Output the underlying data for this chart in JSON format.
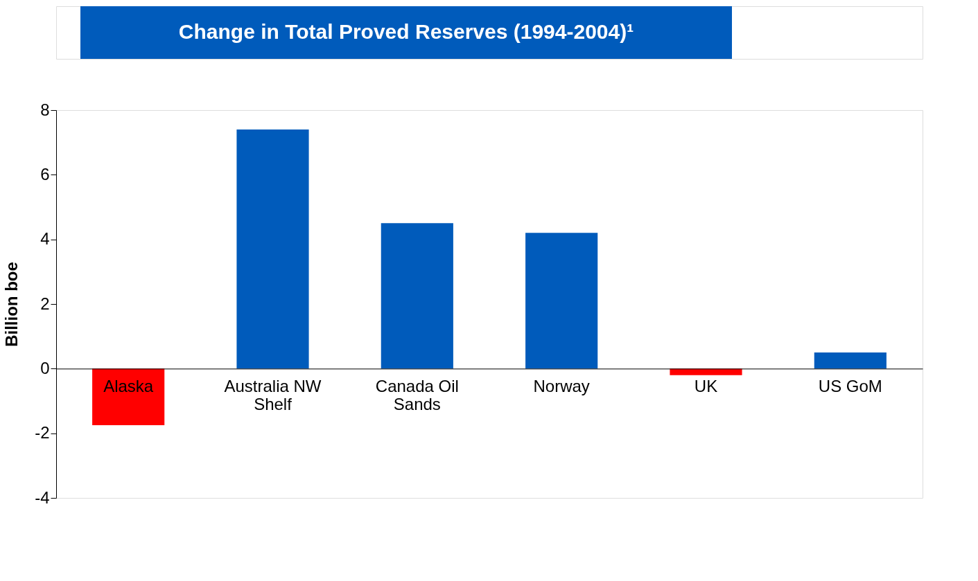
{
  "chart_data": {
    "type": "bar",
    "title": "Change in Total Proved Reserves (1994-2004)¹",
    "ylabel": "Billion boe",
    "categories": [
      "Alaska",
      "Australia NW Shelf",
      "Canada Oil Sands",
      "Norway",
      "UK",
      "US GoM"
    ],
    "values": [
      -1.75,
      7.4,
      4.5,
      4.2,
      -0.2,
      0.5
    ],
    "colors": [
      "#ff0000",
      "#005bbb",
      "#005bbb",
      "#005bbb",
      "#ff0000",
      "#005bbb"
    ],
    "ylim": [
      -4,
      8
    ],
    "yticks": [
      -4,
      -2,
      0,
      2,
      4,
      6,
      8
    ],
    "grid": false
  }
}
